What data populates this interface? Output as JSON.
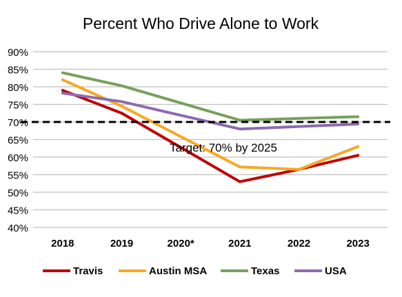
{
  "chart_data": {
    "type": "line",
    "title": "Percent Who Drive Alone to Work",
    "categories": [
      "2018",
      "2019",
      "2020*",
      "2021",
      "2022",
      "2023"
    ],
    "y_ticks": [
      "90%",
      "85%",
      "80%",
      "75%",
      "70%",
      "65%",
      "60%",
      "55%",
      "50%",
      "45%",
      "40%"
    ],
    "ylim": [
      40,
      90
    ],
    "grid": true,
    "legend_position": "bottom",
    "series": [
      {
        "name": "Travis",
        "color": "#c00000",
        "values": [
          79,
          72.5,
          null,
          53,
          56.5,
          60.5
        ]
      },
      {
        "name": "Austin MSA",
        "color": "#f7a823",
        "values": [
          82,
          74.5,
          null,
          57.2,
          56.5,
          63
        ]
      },
      {
        "name": "Texas",
        "color": "#77a05a",
        "values": [
          84,
          80.3,
          null,
          70.5,
          71,
          71.5
        ]
      },
      {
        "name": "USA",
        "color": "#8b6bb0",
        "values": [
          78.2,
          75.8,
          null,
          68,
          68.7,
          69.4
        ]
      }
    ],
    "target": {
      "value": 70,
      "label": "Target: 70% by 2025",
      "color": "#000000"
    }
  }
}
